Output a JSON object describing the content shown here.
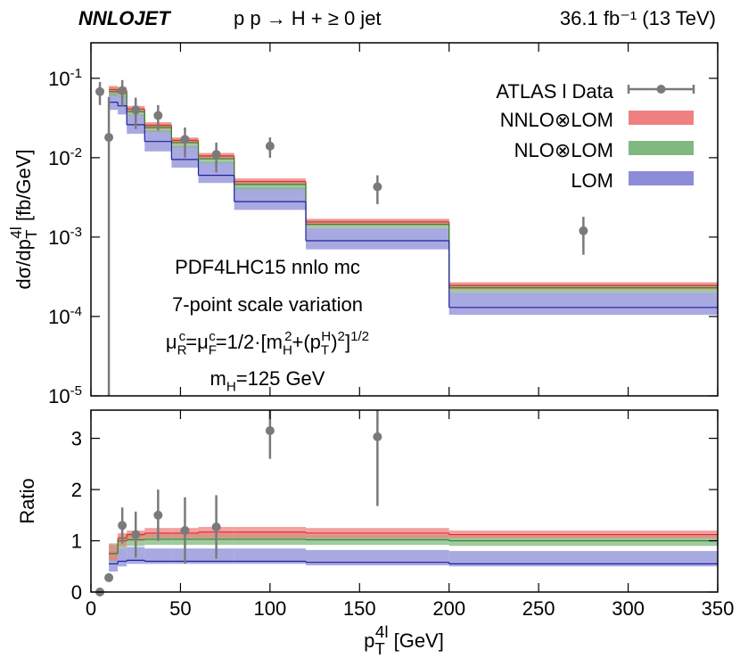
{
  "chart_data": [
    {
      "type": "step-band",
      "title": [
        "NNLOJET",
        "p p → H + ≥ 0 jet",
        "36.1 fb⁻¹ (13 TeV)"
      ],
      "y_label": [
        "dσ/dp",
        "T",
        "4l",
        " [fb/GeV]"
      ],
      "log_y": true,
      "ylim": [
        1e-05,
        0.28
      ],
      "yticks": [
        {
          "value": 0.1,
          "label": "10",
          "exponent": "-1"
        },
        {
          "value": 0.01,
          "label": "10",
          "exponent": "-2"
        },
        {
          "value": 0.001,
          "label": "10",
          "exponent": "-3"
        },
        {
          "value": 0.0001,
          "label": "10",
          "exponent": "-4"
        },
        {
          "value": 1e-05,
          "label": "10",
          "exponent": "-5"
        }
      ],
      "xlim": [
        0,
        350
      ],
      "bins": [
        10,
        15,
        20,
        30,
        45,
        60,
        80,
        120,
        200,
        350
      ],
      "legend": "upper right",
      "annotations": [
        [
          "PDF4LHC15 nnlo mc"
        ],
        [
          "7-point scale variation"
        ],
        [
          "μ",
          "R",
          "c",
          "=μ",
          "F",
          "c",
          "=1/2·[m",
          "H",
          "2",
          "+(p",
          "T",
          "H",
          ")",
          "2",
          "]",
          "1/2"
        ],
        [
          "m",
          "H",
          "=125 GeV"
        ]
      ],
      "data": {
        "name": "ATLAS l Data",
        "color": "#7a7a7a",
        "x": [
          5,
          10,
          17.5,
          25,
          37.5,
          52.5,
          70,
          100,
          160,
          275
        ],
        "values": [
          0.068,
          0.018,
          0.07,
          0.04,
          0.034,
          0.017,
          0.011,
          0.014,
          0.0043,
          0.0012
        ],
        "errors": [
          0.022,
          0.04,
          0.025,
          0.017,
          0.012,
          0.007,
          0.0045,
          0.004,
          0.0017,
          0.0006
        ]
      },
      "series": [
        {
          "name": "NNLO⊗LOM",
          "color": "#f08080",
          "line_color": "#d83030",
          "lower": [
            0.065,
            0.062,
            0.037,
            0.023,
            0.015,
            0.0095,
            0.0045,
            0.0014,
            0.00022
          ],
          "upper": [
            0.08,
            0.078,
            0.045,
            0.028,
            0.018,
            0.0115,
            0.0055,
            0.0017,
            0.00027
          ],
          "central": [
            0.072,
            0.07,
            0.041,
            0.0255,
            0.0165,
            0.0105,
            0.005,
            0.00155,
            0.000245
          ]
        },
        {
          "name": "NLO⊗LOM",
          "color": "#80b880",
          "line_color": "#2a8a2a",
          "lower": [
            0.06,
            0.058,
            0.034,
            0.021,
            0.0135,
            0.0085,
            0.004,
            0.0013,
            0.0002
          ],
          "upper": [
            0.078,
            0.075,
            0.043,
            0.027,
            0.0175,
            0.011,
            0.0052,
            0.00165,
            0.00026
          ],
          "central": [
            0.068,
            0.066,
            0.038,
            0.024,
            0.0155,
            0.0097,
            0.0046,
            0.00145,
            0.00023
          ]
        },
        {
          "name": "LOM",
          "color": "#8c8cd8",
          "line_color": "#2020a0",
          "lower": [
            0.04,
            0.035,
            0.02,
            0.012,
            0.0075,
            0.0048,
            0.0022,
            0.0007,
            0.000105
          ],
          "upper": [
            0.065,
            0.06,
            0.035,
            0.022,
            0.014,
            0.0088,
            0.0042,
            0.0013,
            0.0002
          ],
          "central": [
            0.05,
            0.045,
            0.026,
            0.016,
            0.0095,
            0.006,
            0.0028,
            0.0009,
            0.00013
          ]
        }
      ]
    },
    {
      "type": "step-band",
      "y_label": [
        "Ratio"
      ],
      "x_label": [
        "p",
        "T",
        "4l",
        " [GeV]"
      ],
      "log_y": false,
      "ylim": [
        0,
        3.55
      ],
      "yticks": [
        0,
        1,
        2,
        3
      ],
      "xlim": [
        0,
        350
      ],
      "xticks": [
        0,
        50,
        100,
        150,
        200,
        250,
        300,
        350
      ],
      "bins": [
        10,
        15,
        20,
        30,
        45,
        60,
        80,
        120,
        200,
        350
      ],
      "data": {
        "color": "#7a7a7a",
        "x": [
          5,
          10,
          17.5,
          25,
          37.5,
          52.5,
          70,
          100,
          160
        ],
        "values": [
          0,
          0.28,
          1.3,
          1.12,
          1.5,
          1.2,
          1.27,
          3.15,
          3.03
        ],
        "errors": [
          0,
          0.05,
          0.35,
          0.45,
          0.5,
          0.65,
          0.62,
          0.55,
          1.35
        ]
      },
      "series": [
        {
          "color": "#f08080",
          "line_color": "#d83030",
          "lower": [
            0.62,
            0.9,
            1.0,
            1.05,
            1.05,
            1.05,
            1.05,
            1.05,
            1.05
          ],
          "upper": [
            0.92,
            1.15,
            1.2,
            1.25,
            1.25,
            1.27,
            1.27,
            1.25,
            1.2
          ],
          "central": [
            0.75,
            1.05,
            1.12,
            1.15,
            1.15,
            1.17,
            1.17,
            1.15,
            1.12
          ]
        },
        {
          "color": "#80b880",
          "line_color": "#2a8a2a",
          "lower": [
            0.6,
            0.85,
            0.9,
            0.92,
            0.92,
            0.92,
            0.92,
            0.92,
            0.9
          ],
          "upper": [
            0.95,
            1.1,
            1.15,
            1.15,
            1.15,
            1.15,
            1.15,
            1.12,
            1.1
          ],
          "central": [
            0.75,
            1.0,
            1.02,
            1.03,
            1.03,
            1.03,
            1.03,
            1.02,
            1.0
          ]
        },
        {
          "color": "#8c8cd8",
          "line_color": "#2020a0",
          "lower": [
            0.4,
            0.5,
            0.55,
            0.55,
            0.55,
            0.55,
            0.55,
            0.52,
            0.5
          ],
          "upper": [
            0.8,
            0.85,
            0.88,
            0.85,
            0.85,
            0.85,
            0.85,
            0.82,
            0.8
          ],
          "central": [
            0.55,
            0.6,
            0.62,
            0.6,
            0.6,
            0.6,
            0.6,
            0.58,
            0.55
          ]
        }
      ]
    }
  ]
}
